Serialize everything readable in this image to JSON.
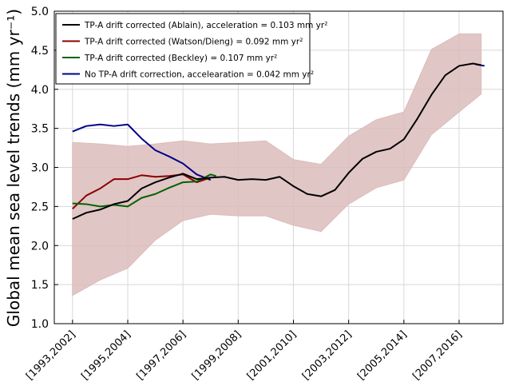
{
  "chart_data": {
    "type": "line",
    "ylabel": "Global mean sea level trends (mm yr⁻¹)",
    "xlim": [
      1992.34,
      2008.59
    ],
    "ylim": [
      1.0,
      5.0
    ],
    "xticks": [
      {
        "value": 1993,
        "label": "[1993,2002]"
      },
      {
        "value": 1995,
        "label": "[1995,2004]"
      },
      {
        "value": 1997,
        "label": "[1997,2006]"
      },
      {
        "value": 1999,
        "label": "[1999,2008]"
      },
      {
        "value": 2001,
        "label": "[2001,2010]"
      },
      {
        "value": 2003,
        "label": "[2003,2012]"
      },
      {
        "value": 2005,
        "label": "[2005,2014]"
      },
      {
        "value": 2007,
        "label": "[2007,2016]"
      }
    ],
    "yticks": [
      {
        "value": 1,
        "label": "1.0"
      },
      {
        "value": 1.5,
        "label": "1.5"
      },
      {
        "value": 2,
        "label": "2.0"
      },
      {
        "value": 2.5,
        "label": "2.5"
      },
      {
        "value": 3,
        "label": "3.0"
      },
      {
        "value": 3.5,
        "label": "3.5"
      },
      {
        "value": 4,
        "label": "4.0"
      },
      {
        "value": 4.5,
        "label": "4.5"
      },
      {
        "value": 5,
        "label": "5.0"
      }
    ],
    "grid": true,
    "legend": "upper-left",
    "band": {
      "color": "#dcbcbc",
      "x": [
        1993,
        1994,
        1995,
        1996,
        1997,
        1998,
        1999,
        2000,
        2001,
        2002,
        2003,
        2004,
        2005,
        2006,
        2007,
        2007.8
      ],
      "upper": [
        3.32,
        3.3,
        3.27,
        3.3,
        3.34,
        3.3,
        3.32,
        3.34,
        3.1,
        3.04,
        3.4,
        3.61,
        3.71,
        4.51,
        4.71,
        4.71
      ],
      "lower": [
        1.36,
        1.56,
        1.71,
        2.07,
        2.32,
        2.4,
        2.38,
        2.38,
        2.26,
        2.18,
        2.53,
        2.74,
        2.84,
        3.42,
        3.71,
        3.94
      ]
    },
    "series": [
      {
        "name": "No TP-A drift correction, accelearation = 0.042 mm yr²",
        "color": "#00008b",
        "x": [
          1993,
          1993.5,
          1994,
          1994.5,
          1995,
          1995.5,
          1996,
          1996.5,
          1997,
          1997.5,
          1998,
          1998.5,
          2007.6,
          2007.92
        ],
        "values": [
          3.46,
          3.53,
          3.55,
          3.53,
          3.55,
          3.37,
          3.22,
          3.14,
          3.05,
          2.91,
          2.84,
          null,
          4.32,
          4.3
        ]
      },
      {
        "name": "TP-A drift corrected (Watson/Dieng) = 0.092 mm yr²",
        "color": "#8b0000",
        "x": [
          1993,
          1993.5,
          1994,
          1994.5,
          1995,
          1995.5,
          1996,
          1996.5,
          1997,
          1997.5,
          1998
        ],
        "values": [
          2.47,
          2.64,
          2.73,
          2.85,
          2.85,
          2.9,
          2.88,
          2.89,
          2.91,
          2.81,
          2.87
        ]
      },
      {
        "name": "TP-A drift corrected (Beckley) = 0.107 mm yr²",
        "color": "#006400",
        "x": [
          1993,
          1993.5,
          1994,
          1994.5,
          1995,
          1995.5,
          1996,
          1996.5,
          1997,
          1997.5,
          1998,
          1998.2
        ],
        "values": [
          2.54,
          2.53,
          2.5,
          2.52,
          2.5,
          2.61,
          2.66,
          2.74,
          2.81,
          2.82,
          2.91,
          2.89
        ]
      },
      {
        "name": "TP-A drift corrected (Ablain), acceleration = 0.103 mm yr²",
        "color": "#000000",
        "x": [
          1993,
          1993.5,
          1994,
          1994.5,
          1995,
          1995.5,
          1996,
          1996.5,
          1997,
          1997.5,
          1998,
          1998.5,
          1999,
          1999.5,
          2000,
          2000.5,
          2001,
          2001.5,
          2002,
          2002.5,
          2003,
          2003.5,
          2004,
          2004.5,
          2005,
          2005.5,
          2006,
          2006.5,
          2007,
          2007.5,
          2007.8
        ],
        "values": [
          2.34,
          2.42,
          2.46,
          2.53,
          2.57,
          2.73,
          2.81,
          2.87,
          2.92,
          2.85,
          2.87,
          2.88,
          2.84,
          2.85,
          2.84,
          2.88,
          2.76,
          2.66,
          2.63,
          2.71,
          2.93,
          3.11,
          3.2,
          3.24,
          3.36,
          3.63,
          3.93,
          4.18,
          4.3,
          4.33,
          4.31
        ]
      }
    ],
    "legend_order": [
      3,
      1,
      2,
      0
    ]
  }
}
